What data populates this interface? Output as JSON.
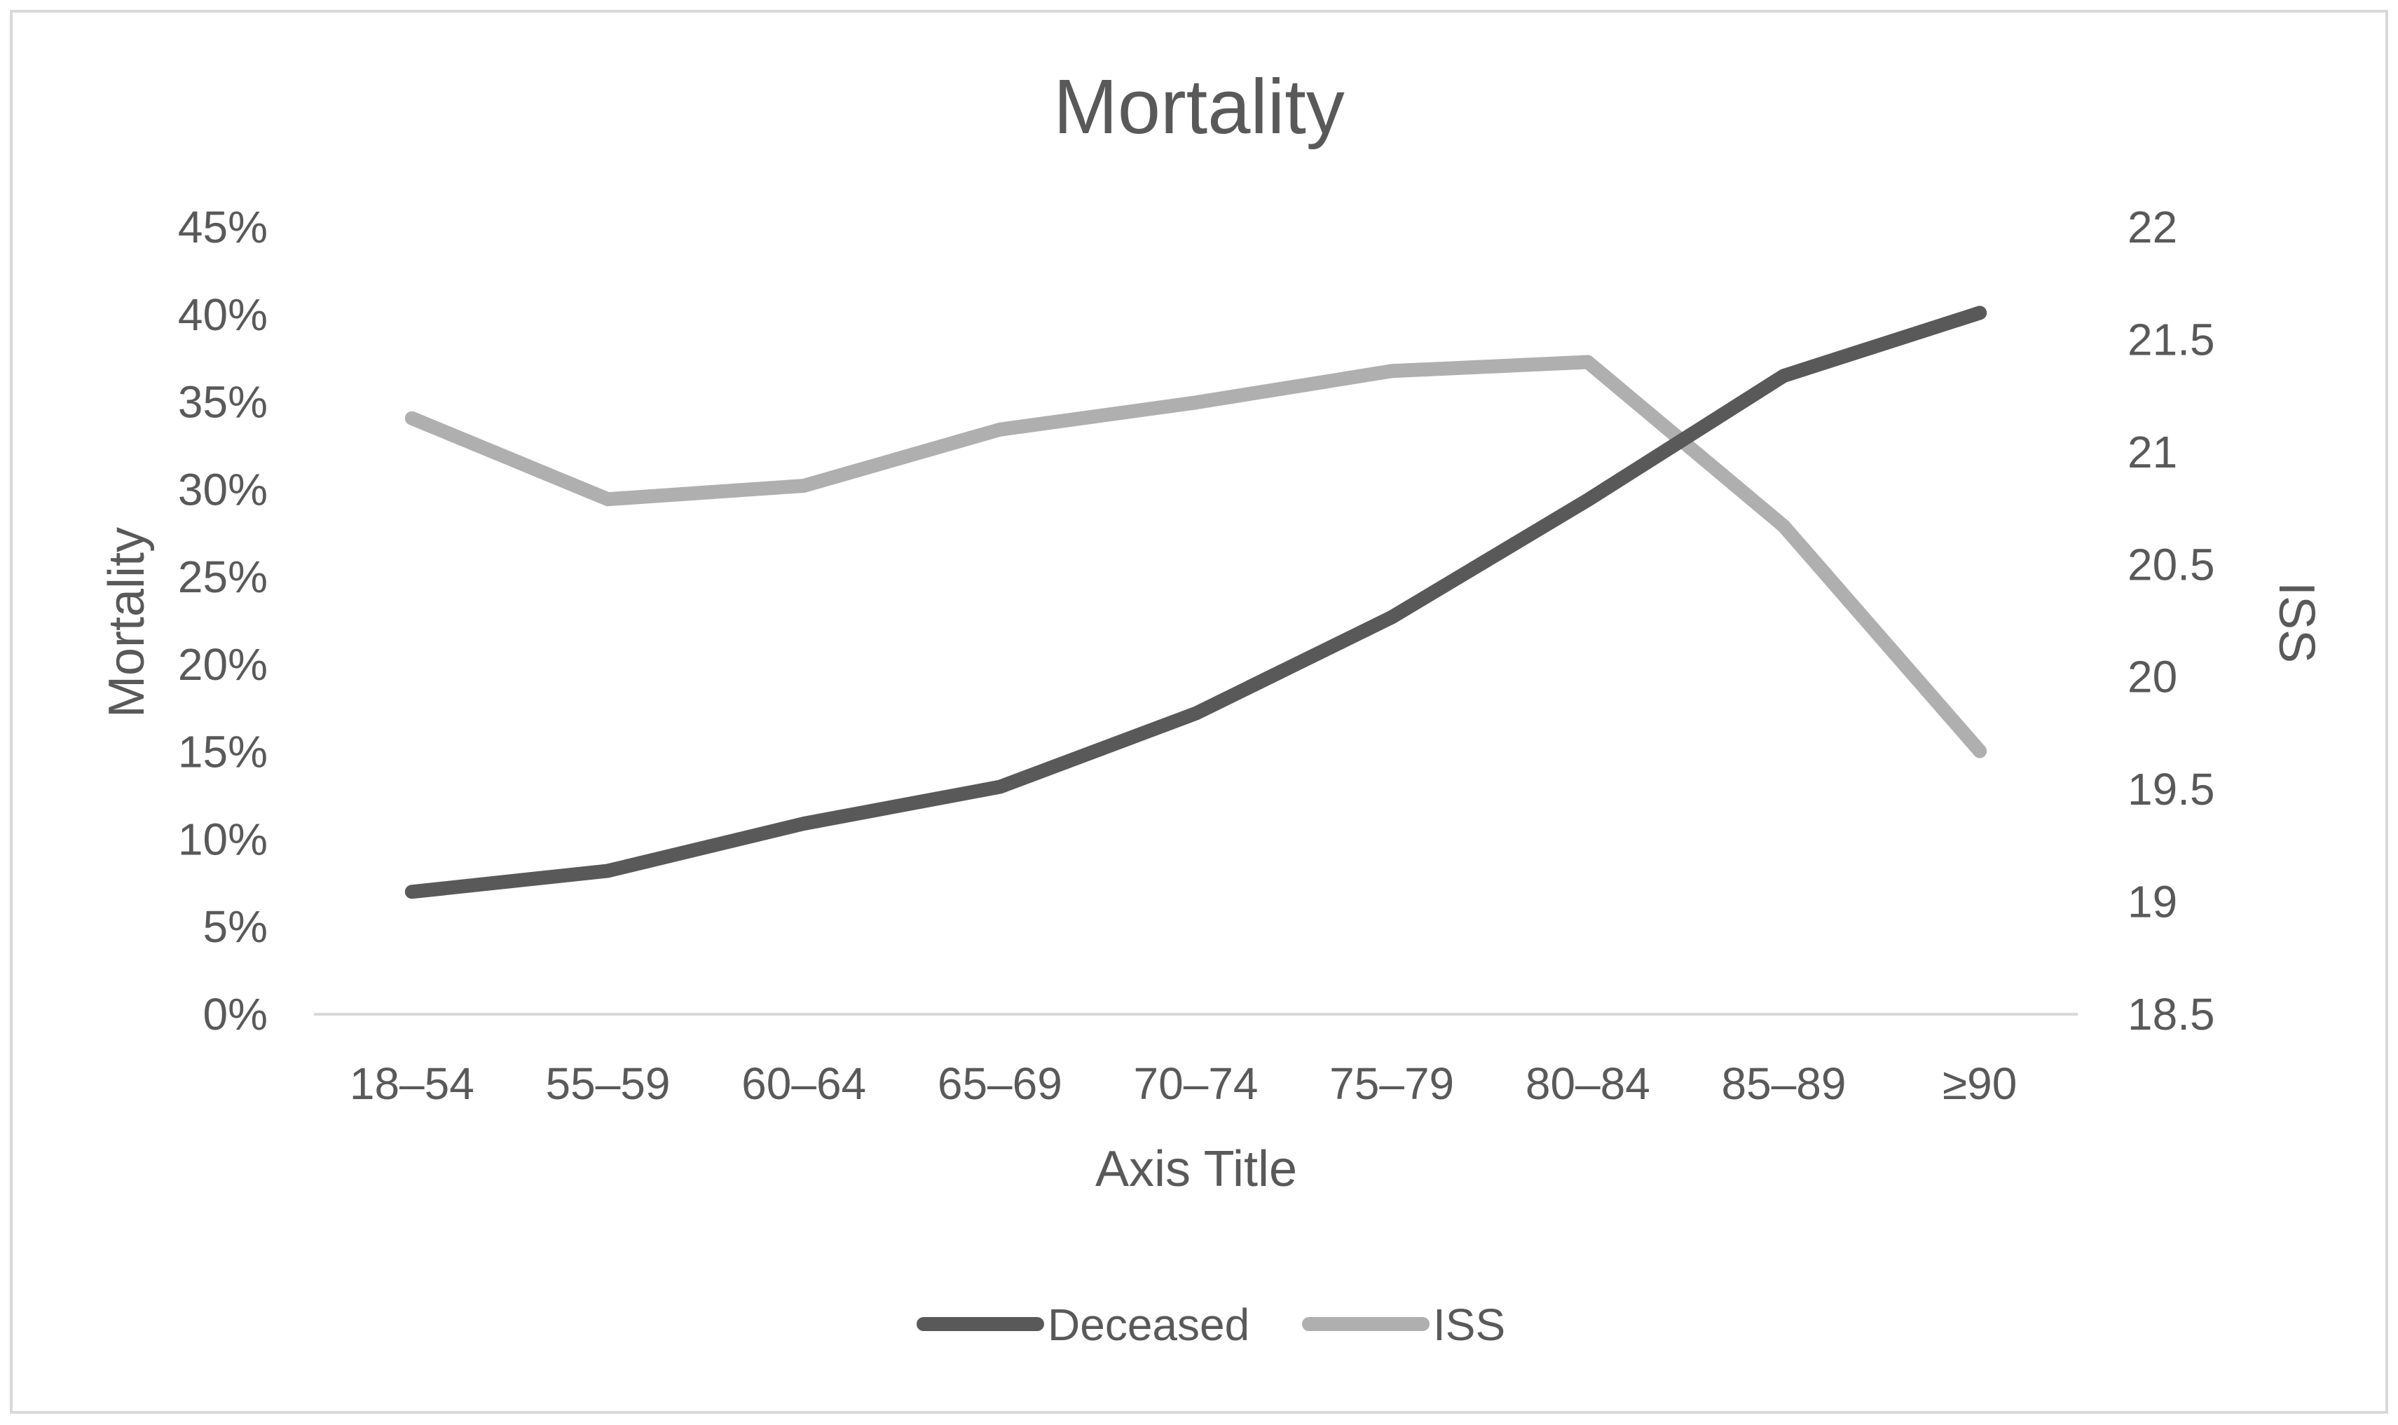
{
  "chart_data": {
    "type": "line",
    "title": "Mortality",
    "categories": [
      "18–54",
      "55–59",
      "60–64",
      "65–69",
      "70–74",
      "75–79",
      "80–84",
      "85–89",
      "≥90"
    ],
    "xlabel": "Axis Title",
    "ylabel": "Mortality",
    "y2label": "ISS",
    "ylim": [
      0,
      0.45
    ],
    "y2lim": [
      18.5,
      22
    ],
    "yticks": [
      "0%",
      "5%",
      "10%",
      "15%",
      "20%",
      "25%",
      "30%",
      "35%",
      "40%",
      "45%"
    ],
    "y2ticks": [
      "18.5",
      "19",
      "19.5",
      "20",
      "20.5",
      "21",
      "21.5",
      "22"
    ],
    "series": [
      {
        "name": "Deceased",
        "axis": "left",
        "color": "#595959",
        "values": [
          0.07,
          0.082,
          0.109,
          0.13,
          0.172,
          0.227,
          0.294,
          0.365,
          0.401
        ]
      },
      {
        "name": "ISS",
        "axis": "right",
        "color": "#afafaf",
        "values": [
          21.15,
          20.79,
          20.85,
          21.1,
          21.22,
          21.36,
          21.4,
          20.67,
          19.67
        ]
      }
    ],
    "legend": "bottom",
    "grid": false
  }
}
